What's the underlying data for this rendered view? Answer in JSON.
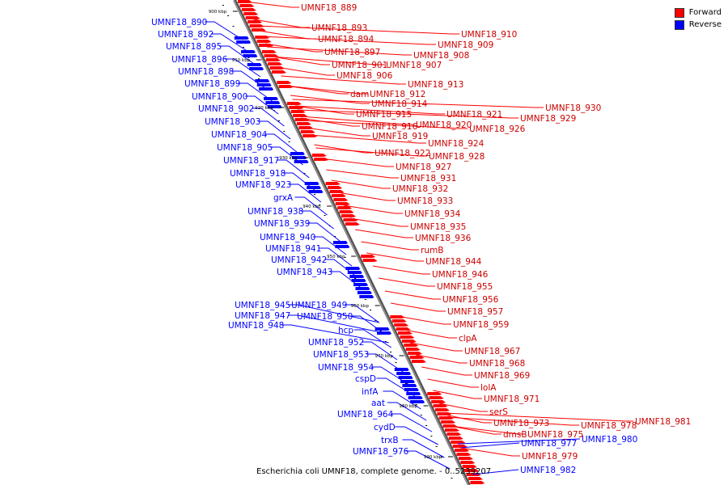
{
  "legend": {
    "forward_label": "Forward",
    "reverse_label": "Reverse",
    "forward_color": "#ff0000",
    "reverse_color": "#0000ff"
  },
  "caption": "Escherichia coli UMNF18, complete genome. - 0..5239207",
  "ticks": [
    "900 kbp",
    "910 kbp",
    "920 kbp",
    "930 kbp",
    "940 kbp",
    "950 kbp",
    "960 kbp",
    "970 kbp",
    "980 kbp",
    "990 kbp"
  ],
  "genes_reverse": [
    "UMNF18_890",
    "UMNF18_892",
    "UMNF18_895",
    "UMNF18_896",
    "UMNF18_898",
    "UMNF18_899",
    "UMNF18_900",
    "UMNF18_902",
    "UMNF18_903",
    "UMNF18_904",
    "UMNF18_905",
    "UMNF18_917",
    "UMNF18_918",
    "UMNF18_923",
    "grxA",
    "UMNF18_938",
    "UMNF18_939",
    "UMNF18_940",
    "UMNF18_941",
    "UMNF18_942",
    "UMNF18_943",
    "UMNF18_945",
    "UMNF18_949",
    "UMNF18_947",
    "UMNF18_950",
    "UMNF18_948",
    "hcp",
    "UMNF18_952",
    "UMNF18_953",
    "UMNF18_954",
    "cspD",
    "infA",
    "aat",
    "UMNF18_964",
    "cydD",
    "trxB",
    "UMNF18_976",
    "UMNF18_977",
    "UMNF18_980",
    "UMNF18_982"
  ],
  "genes_forward": [
    "UMNF18_889",
    "UMNF18_893",
    "UMNF18_894",
    "UMNF18_897",
    "UMNF18_910",
    "UMNF18_909",
    "UMNF18_908",
    "UMNF18_901",
    "UMNF18_907",
    "UMNF18_906",
    "UMNF18_913",
    "dam",
    "UMNF18_912",
    "UMNF18_914",
    "UMNF18_915",
    "UMNF18_921",
    "UMNF18_930",
    "UMNF18_920",
    "UMNF18_929",
    "UMNF18_916",
    "UMNF18_926",
    "UMNF18_919",
    "UMNF18_924",
    "UMNF18_922",
    "UMNF18_928",
    "UMNF18_927",
    "UMNF18_931",
    "UMNF18_932",
    "UMNF18_933",
    "UMNF18_934",
    "UMNF18_935",
    "UMNF18_936",
    "rumB",
    "UMNF18_944",
    "UMNF18_946",
    "UMNF18_955",
    "UMNF18_956",
    "UMNF18_957",
    "UMNF18_959",
    "clpA",
    "UMNF18_967",
    "UMNF18_968",
    "UMNF18_969",
    "lolA",
    "UMNF18_971",
    "serS",
    "UMNF18_973",
    "dmsB",
    "UMNF18_975",
    "UMNF18_978",
    "UMNF18_981",
    "UMNF18_979"
  ]
}
